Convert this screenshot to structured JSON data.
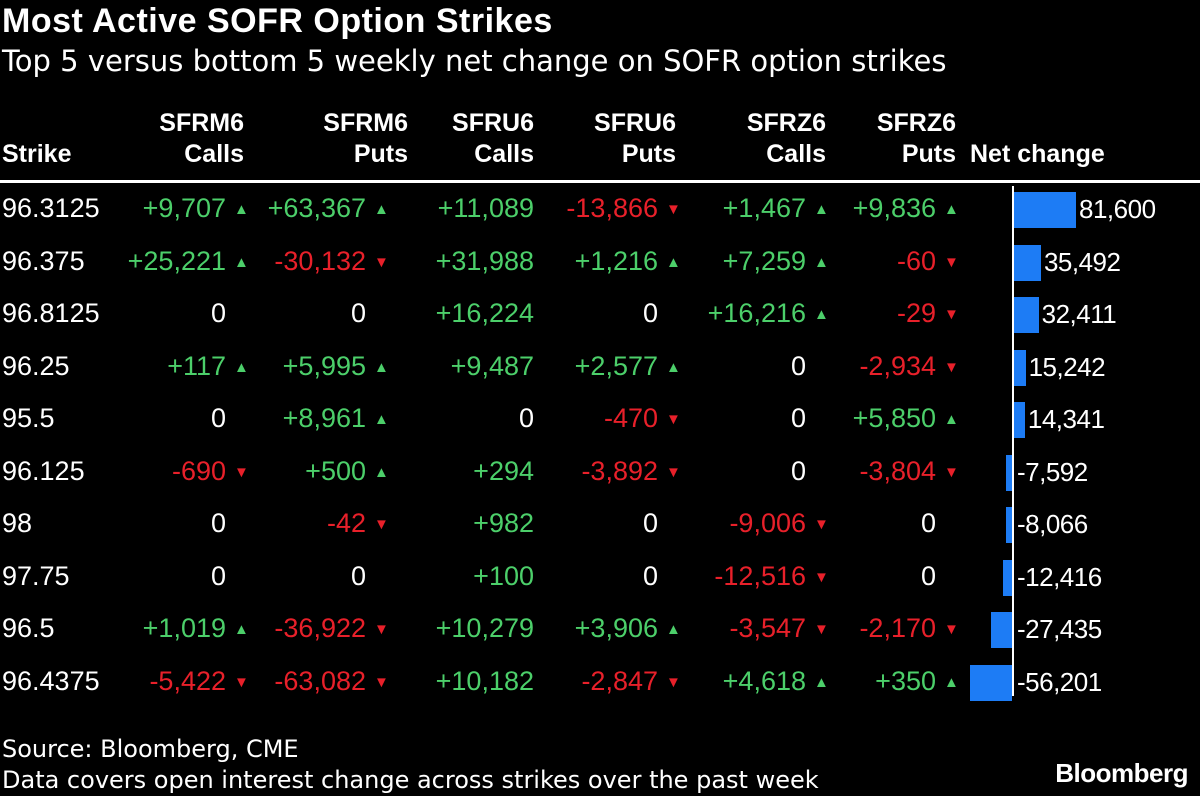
{
  "title": "Most Active SOFR Option Strikes",
  "subtitle": "Top 5 versus bottom 5 weekly net change on SOFR option strikes",
  "headers": {
    "strike": "Strike",
    "c1": [
      "SFRM6",
      "Calls"
    ],
    "c2": [
      "SFRM6",
      "Puts"
    ],
    "c3": [
      "SFRU6",
      "Calls"
    ],
    "c4": [
      "SFRU6",
      "Puts"
    ],
    "c5": [
      "SFRZ6",
      "Calls"
    ],
    "c6": [
      "SFRZ6",
      "Puts"
    ],
    "net": "Net change"
  },
  "colors": {
    "positive": "#4ccf6a",
    "negative": "#e8202a",
    "bar": "#1d7cf5"
  },
  "chart_data": {
    "type": "table",
    "columns": [
      "Strike",
      "SFRM6 Calls",
      "SFRM6 Puts",
      "SFRU6 Calls",
      "SFRU6 Puts",
      "SFRZ6 Calls",
      "SFRZ6 Puts",
      "Net change"
    ],
    "rows": [
      {
        "strike": "96.3125",
        "cells": [
          "+9,707",
          "+63,367",
          "+11,089",
          "-13,866",
          "+1,467",
          "+9,836"
        ],
        "arrows": [
          "up",
          "up",
          "",
          "down",
          "up",
          "up"
        ],
        "net": 81600,
        "net_label": "81,600"
      },
      {
        "strike": "96.375",
        "cells": [
          "+25,221",
          "-30,132",
          "+31,988",
          "+1,216",
          "+7,259",
          "-60"
        ],
        "arrows": [
          "up",
          "down",
          "",
          "up",
          "up",
          "down"
        ],
        "net": 35492,
        "net_label": "35,492"
      },
      {
        "strike": "96.8125",
        "cells": [
          "0",
          "0",
          "+16,224",
          "0",
          "+16,216",
          "-29"
        ],
        "arrows": [
          "",
          "",
          "",
          "",
          "up",
          "down"
        ],
        "net": 32411,
        "net_label": "32,411"
      },
      {
        "strike": "96.25",
        "cells": [
          "+117",
          "+5,995",
          "+9,487",
          "+2,577",
          "0",
          "-2,934"
        ],
        "arrows": [
          "up",
          "up",
          "",
          "up",
          "",
          "down"
        ],
        "net": 15242,
        "net_label": "15,242"
      },
      {
        "strike": "95.5",
        "cells": [
          "0",
          "+8,961",
          "0",
          "-470",
          "0",
          "+5,850"
        ],
        "arrows": [
          "",
          "up",
          "",
          "down",
          "",
          "up"
        ],
        "net": 14341,
        "net_label": "14,341"
      },
      {
        "strike": "96.125",
        "cells": [
          "-690",
          "+500",
          "+294",
          "-3,892",
          "0",
          "-3,804"
        ],
        "arrows": [
          "down",
          "up",
          "",
          "down",
          "",
          "down"
        ],
        "net": -7592,
        "net_label": "-7,592"
      },
      {
        "strike": "98",
        "cells": [
          "0",
          "-42",
          "+982",
          "0",
          "-9,006",
          "0"
        ],
        "arrows": [
          "",
          "down",
          "",
          "",
          "down",
          ""
        ],
        "net": -8066,
        "net_label": "-8,066"
      },
      {
        "strike": "97.75",
        "cells": [
          "0",
          "0",
          "+100",
          "0",
          "-12,516",
          "0"
        ],
        "arrows": [
          "",
          "",
          "",
          "",
          "down",
          ""
        ],
        "net": -12416,
        "net_label": "-12,416"
      },
      {
        "strike": "96.5",
        "cells": [
          "+1,019",
          "-36,922",
          "+10,279",
          "+3,906",
          "-3,547",
          "-2,170"
        ],
        "arrows": [
          "up",
          "down",
          "",
          "up",
          "down",
          "down"
        ],
        "net": -27435,
        "net_label": "-27,435"
      },
      {
        "strike": "96.4375",
        "cells": [
          "-5,422",
          "-63,082",
          "+10,182",
          "-2,847",
          "+4,618",
          "+350"
        ],
        "arrows": [
          "down",
          "down",
          "",
          "down",
          "up",
          "up"
        ],
        "net": -56201,
        "net_label": "-56,201"
      }
    ],
    "net_range": [
      -56201,
      81600
    ]
  },
  "source": "Source: Bloomberg, CME",
  "note": "Data covers open interest change across strikes over the past week",
  "brand": "Bloomberg"
}
